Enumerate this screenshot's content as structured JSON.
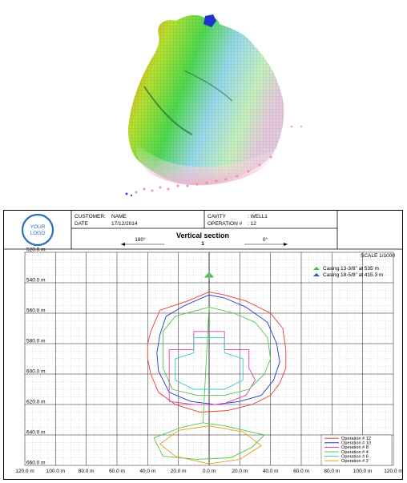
{
  "colors": {
    "op12": "#e8383a",
    "op10": "#2236c8",
    "op8": "#e23fa8",
    "op4": "#4fc64f",
    "op6": "#34c9c2",
    "op2": "#e0a020",
    "casing_a": "#2ecc40",
    "casing_b": "#2255dd",
    "logo": "#2a6fb8"
  },
  "header": {
    "logo_text_1": "YOUR",
    "logo_text_2": "LOGO",
    "customer_label": "CUSTOMER:",
    "customer_value": "NAME",
    "date_label": "DATE",
    "date_value": "17/12/2014",
    "cavity_label": "CAVITY",
    "cavity_value": ": WELL1",
    "operation_label": "OPERATION #",
    "operation_value": ": 12",
    "direction_left": "180°",
    "direction_right": "0°",
    "section_title": "Vertical section",
    "section_number": "1",
    "scale": "SCALE 1/1000"
  },
  "chart_data": {
    "type": "line",
    "x_tick_labels": [
      "120.0 m",
      "100.0 m",
      "80.0 m",
      "60.0 m",
      "40.0 m",
      "20.0 m",
      "0.0 m",
      "20.0 m",
      "40.0 m",
      "60.0 m",
      "80.0 m",
      "100.0 m",
      "120.0 m"
    ],
    "y_tick_labels": [
      "520.0 m",
      "540.0 m",
      "560.0 m",
      "580.0 m",
      "600.0 m",
      "620.0 m",
      "640.0 m",
      "660.0 m"
    ],
    "xlim": [
      -120,
      120
    ],
    "ylim": [
      520,
      660
    ],
    "casings": [
      {
        "label": "Casing 13-3/8\" at 535 m",
        "depth": 535,
        "color": "#2ecc40"
      },
      {
        "label": "Casing 18-5/8\" at 415.3 m",
        "depth": 415.3,
        "color": "#2255dd"
      }
    ],
    "legend_position": "bottom-right",
    "series": [
      {
        "name": "Operation # 12",
        "color": "#e8383a",
        "points": [
          [
            0,
            546
          ],
          [
            -14,
            552
          ],
          [
            -32,
            558
          ],
          [
            -38,
            572
          ],
          [
            -40,
            580
          ],
          [
            -40,
            590
          ],
          [
            -38,
            600
          ],
          [
            -33,
            612
          ],
          [
            -22,
            620
          ],
          [
            -6,
            625
          ],
          [
            12,
            624
          ],
          [
            28,
            620
          ],
          [
            40,
            614
          ],
          [
            46,
            606
          ],
          [
            50,
            596
          ],
          [
            50,
            584
          ],
          [
            48,
            570
          ],
          [
            40,
            560
          ],
          [
            24,
            552
          ],
          [
            10,
            548
          ],
          [
            0,
            546
          ]
        ]
      },
      {
        "name": "Operation # 10",
        "color": "#2236c8",
        "points": [
          [
            0,
            548
          ],
          [
            -16,
            555
          ],
          [
            -28,
            562
          ],
          [
            -32,
            574
          ],
          [
            -34,
            586
          ],
          [
            -33,
            598
          ],
          [
            -26,
            612
          ],
          [
            -12,
            618
          ],
          [
            4,
            620
          ],
          [
            20,
            618
          ],
          [
            34,
            614
          ],
          [
            42,
            604
          ],
          [
            46,
            592
          ],
          [
            44,
            580
          ],
          [
            38,
            566
          ],
          [
            24,
            556
          ],
          [
            10,
            550
          ],
          [
            0,
            548
          ]
        ]
      },
      {
        "name": "Operation # 8",
        "color": "#e23fa8",
        "points": [
          [
            -26,
            618
          ],
          [
            -26,
            584
          ],
          [
            -10,
            584
          ],
          [
            -10,
            572
          ],
          [
            10,
            572
          ],
          [
            10,
            584
          ],
          [
            26,
            584
          ],
          [
            26,
            596
          ],
          [
            30,
            604
          ],
          [
            24,
            614
          ],
          [
            8,
            620
          ],
          [
            -10,
            620
          ],
          [
            -26,
            618
          ]
        ]
      },
      {
        "name": "Operation # 4",
        "color": "#4fc64f",
        "points": [
          [
            0,
            556
          ],
          [
            -22,
            562
          ],
          [
            -30,
            572
          ],
          [
            -30,
            596
          ],
          [
            -24,
            610
          ],
          [
            -8,
            614
          ],
          [
            10,
            614
          ],
          [
            26,
            610
          ],
          [
            36,
            600
          ],
          [
            40,
            590
          ],
          [
            38,
            576
          ],
          [
            30,
            566
          ],
          [
            16,
            560
          ],
          [
            0,
            556
          ],
          [
            -4,
            632
          ],
          [
            -18,
            635
          ],
          [
            -36,
            642
          ],
          [
            -30,
            654
          ],
          [
            -8,
            656
          ],
          [
            14,
            655
          ],
          [
            28,
            648
          ],
          [
            36,
            640
          ],
          [
            10,
            634
          ],
          [
            -4,
            632
          ]
        ]
      },
      {
        "name": "Operation # 6",
        "color": "#34c9c2",
        "points": [
          [
            -22,
            604
          ],
          [
            -22,
            590
          ],
          [
            -10,
            586
          ],
          [
            -10,
            576
          ],
          [
            10,
            576
          ],
          [
            10,
            586
          ],
          [
            22,
            590
          ],
          [
            22,
            604
          ],
          [
            10,
            610
          ],
          [
            -10,
            610
          ],
          [
            -22,
            604
          ]
        ]
      },
      {
        "name": "Operation # 2",
        "color": "#e0a020",
        "points": [
          [
            0,
            634
          ],
          [
            -20,
            637
          ],
          [
            -32,
            646
          ],
          [
            -22,
            654
          ],
          [
            0,
            659
          ],
          [
            20,
            656
          ],
          [
            34,
            647
          ],
          [
            22,
            638
          ],
          [
            0,
            634
          ]
        ]
      }
    ]
  }
}
